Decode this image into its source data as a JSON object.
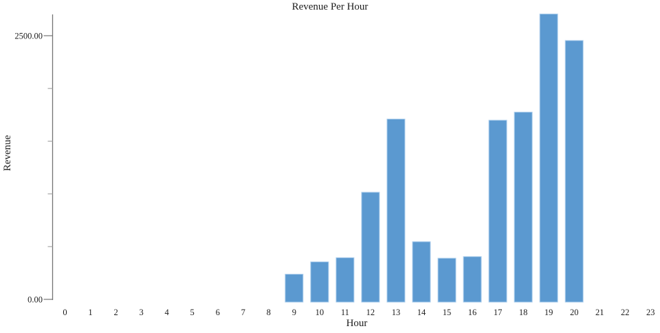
{
  "colors": {
    "bar_fill": "#5b99d0",
    "bar_edge": "#aecfed",
    "axis_line": "#737373",
    "major_tick": "#737373",
    "minor_tick": "#a6a6a6",
    "text": "#1c1c1c",
    "background": "#ffffff"
  },
  "chart_data": {
    "type": "bar",
    "title": "Revenue Per Hour",
    "xlabel": "Hour",
    "ylabel": "Revenue",
    "categories": [
      "0",
      "1",
      "2",
      "3",
      "4",
      "5",
      "6",
      "7",
      "8",
      "9",
      "10",
      "11",
      "12",
      "13",
      "14",
      "15",
      "16",
      "17",
      "18",
      "19",
      "20",
      "21",
      "22",
      "23"
    ],
    "values": [
      0,
      0,
      0,
      0,
      0,
      0,
      0,
      0,
      0,
      262,
      378,
      417,
      1031,
      1718,
      567,
      412,
      427,
      1707,
      1783,
      2704,
      2455,
      0,
      0,
      0
    ],
    "ylim": [
      0,
      2700
    ],
    "grid": false,
    "legend": "none",
    "y_axis": {
      "major_ticks": [
        {
          "value": 0,
          "label": "0.00"
        },
        {
          "value": 2500,
          "label": "2500.00"
        }
      ],
      "minor_tick_values": [
        500,
        1000,
        1500,
        2000
      ]
    }
  }
}
